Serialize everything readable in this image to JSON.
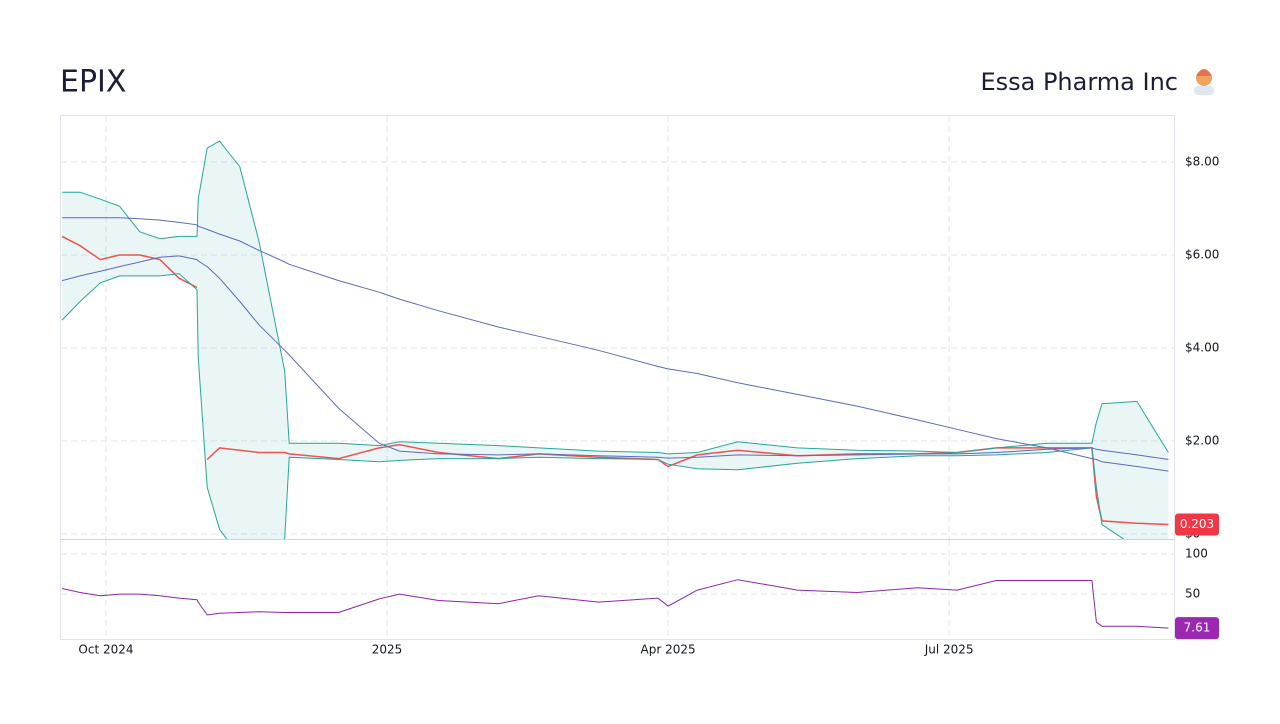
{
  "header": {
    "ticker": "EPIX",
    "company": "Essa Pharma Inc"
  },
  "chart_data": [
    {
      "type": "line",
      "x": [
        2024.711,
        2024.727,
        2024.745,
        2024.762,
        2024.78,
        2024.798,
        2024.815,
        2024.831,
        2024.832,
        2024.84,
        2024.851,
        2024.869,
        2024.886,
        2024.909,
        2024.913,
        2024.957,
        2024.993,
        2025.011,
        2025.046,
        2025.099,
        2025.135,
        2025.188,
        2025.241,
        2025.25,
        2025.276,
        2025.312,
        2025.365,
        2025.418,
        2025.472,
        2025.507,
        2025.542,
        2025.587,
        2025.627,
        2025.631,
        2025.636,
        2025.667,
        2025.695
      ],
      "series": [
        {
          "color": "#ef5350",
          "values": [
            6.4,
            6.2,
            5.9,
            6.0,
            6.0,
            5.9,
            5.5,
            5.3,
            null,
            1.6,
            1.85,
            1.8,
            1.75,
            1.75,
            1.72,
            1.62,
            1.85,
            1.92,
            1.75,
            1.62,
            1.72,
            1.65,
            1.6,
            1.45,
            1.7,
            1.8,
            1.68,
            1.72,
            1.72,
            1.75,
            1.85,
            1.85,
            1.85,
            0.8,
            0.28,
            0.23,
            0.203
          ]
        },
        {
          "color": "#26a69a",
          "values": [
            7.35,
            7.35,
            7.2,
            7.05,
            6.5,
            6.35,
            6.4,
            6.4,
            7.2,
            8.3,
            8.45,
            7.9,
            6.3,
            3.5,
            1.95,
            1.95,
            1.9,
            1.98,
            1.95,
            1.9,
            1.85,
            1.78,
            1.75,
            1.72,
            1.75,
            1.98,
            1.85,
            1.8,
            1.78,
            1.75,
            1.85,
            1.95,
            1.95,
            2.4,
            2.8,
            2.85,
            1.75
          ]
        },
        {
          "color": "#26a69a",
          "values": [
            4.6,
            5.0,
            5.4,
            5.55,
            5.55,
            5.55,
            5.6,
            5.25,
            3.8,
            1.0,
            0.1,
            -0.5,
            -0.6,
            -0.1,
            1.65,
            1.6,
            1.55,
            1.58,
            1.62,
            1.62,
            1.65,
            1.62,
            1.6,
            1.5,
            1.4,
            1.38,
            1.52,
            1.62,
            1.68,
            1.68,
            1.7,
            1.75,
            1.85,
            1.0,
            0.2,
            -0.3,
            -0.3
          ]
        },
        {
          "color": "#5c6bc0",
          "values": [
            6.8,
            6.8,
            6.8,
            6.8,
            6.78,
            6.75,
            6.7,
            6.65,
            6.62,
            6.55,
            6.45,
            6.3,
            6.1,
            5.85,
            5.8,
            5.45,
            5.2,
            5.05,
            4.8,
            4.45,
            4.25,
            3.95,
            3.6,
            3.55,
            3.45,
            3.25,
            3.0,
            2.75,
            2.45,
            2.25,
            2.05,
            1.85,
            1.62,
            1.6,
            1.55,
            1.45,
            1.35
          ]
        },
        {
          "color": "#5c6bc0",
          "values": [
            5.45,
            5.55,
            5.65,
            5.75,
            5.85,
            5.95,
            5.98,
            5.9,
            5.87,
            5.75,
            5.5,
            5.0,
            4.5,
            3.95,
            3.85,
            2.7,
            1.95,
            1.78,
            1.72,
            1.7,
            1.72,
            1.68,
            1.65,
            1.63,
            1.65,
            1.7,
            1.68,
            1.7,
            1.72,
            1.72,
            1.75,
            1.82,
            1.85,
            1.82,
            1.8,
            1.7,
            1.6
          ]
        }
      ],
      "band": [
        1,
        2
      ],
      "xlim": [
        2024.71,
        2025.7
      ],
      "ylim": [
        -0.11,
        8.99
      ],
      "yticks": [
        {
          "value": 0,
          "label": "$0"
        },
        {
          "value": 2,
          "label": "$2.00"
        },
        {
          "value": 4,
          "label": "$4.00"
        },
        {
          "value": 6,
          "label": "$6.00"
        },
        {
          "value": 8,
          "label": "$8.00"
        }
      ],
      "grid": true
    },
    {
      "type": "line",
      "x": [
        2024.711,
        2024.727,
        2024.745,
        2024.762,
        2024.78,
        2024.798,
        2024.815,
        2024.831,
        2024.832,
        2024.84,
        2024.851,
        2024.869,
        2024.886,
        2024.909,
        2024.913,
        2024.957,
        2024.993,
        2025.011,
        2025.046,
        2025.099,
        2025.135,
        2025.188,
        2025.241,
        2025.25,
        2025.276,
        2025.312,
        2025.365,
        2025.418,
        2025.472,
        2025.507,
        2025.542,
        2025.587,
        2025.627,
        2025.631,
        2025.636,
        2025.667,
        2025.695
      ],
      "series": [
        {
          "color": "#8e24aa",
          "values": [
            57,
            52,
            48,
            50,
            50,
            48,
            45,
            43,
            40,
            24,
            26,
            27,
            28,
            27,
            27,
            27,
            44,
            50,
            42,
            38,
            48,
            40,
            45,
            35,
            55,
            68,
            55,
            52,
            58,
            55,
            67,
            67,
            67,
            15,
            10,
            10,
            7.61
          ]
        }
      ],
      "xlim": [
        2024.71,
        2025.7
      ],
      "ylim": [
        -6,
        117.5
      ],
      "yticks": [
        50,
        100
      ],
      "xticks": [
        {
          "value": 2024.75,
          "label": "Oct 2024"
        },
        2025,
        {
          "value": 2025.25,
          "label": "Apr 2025"
        },
        {
          "value": 2025.5,
          "label": "Jul 2025"
        }
      ],
      "grid": true
    }
  ]
}
